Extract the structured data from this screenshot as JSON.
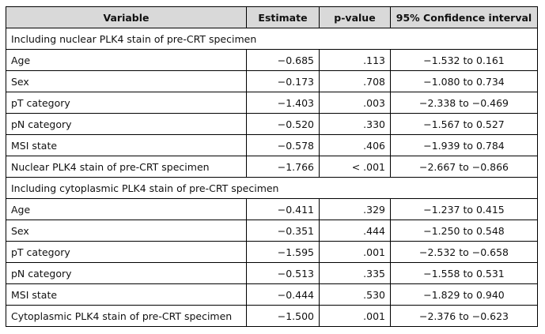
{
  "columns": [
    "Variable",
    "Estimate",
    "p-value",
    "95% Confidence interval"
  ],
  "sections": [
    {
      "title": "Including nuclear PLK4 stain of pre-CRT specimen",
      "rows": [
        {
          "variable": "Age",
          "estimate": "−0.685",
          "p": ".113",
          "ci": "−1.532 to 0.161"
        },
        {
          "variable": "Sex",
          "estimate": "−0.173",
          "p": ".708",
          "ci": "−1.080 to 0.734"
        },
        {
          "variable": "pT category",
          "estimate": "−1.403",
          "p": ".003",
          "ci": "−2.338 to −0.469"
        },
        {
          "variable": "pN category",
          "estimate": "−0.520",
          "p": ".330",
          "ci": "−1.567 to 0.527"
        },
        {
          "variable": "MSI state",
          "estimate": "−0.578",
          "p": ".406",
          "ci": "−1.939 to 0.784"
        },
        {
          "variable": "Nuclear PLK4 stain of pre-CRT specimen",
          "estimate": "−1.766",
          "p": "< .001",
          "ci": "−2.667 to −0.866"
        }
      ]
    },
    {
      "title": "Including cytoplasmic PLK4 stain of pre-CRT specimen",
      "rows": [
        {
          "variable": "Age",
          "estimate": "−0.411",
          "p": ".329",
          "ci": "−1.237 to 0.415"
        },
        {
          "variable": "Sex",
          "estimate": "−0.351",
          "p": ".444",
          "ci": "−1.250 to 0.548"
        },
        {
          "variable": "pT category",
          "estimate": "−1.595",
          "p": ".001",
          "ci": "−2.532 to −0.658"
        },
        {
          "variable": "pN category",
          "estimate": "−0.513",
          "p": ".335",
          "ci": "−1.558 to 0.531"
        },
        {
          "variable": "MSI state",
          "estimate": "−0.444",
          "p": ".530",
          "ci": "−1.829 to 0.940"
        },
        {
          "variable": "Cytoplasmic PLK4 stain of pre-CRT specimen",
          "estimate": "−1.500",
          "p": ".001",
          "ci": "−2.376 to −0.623"
        }
      ]
    }
  ]
}
